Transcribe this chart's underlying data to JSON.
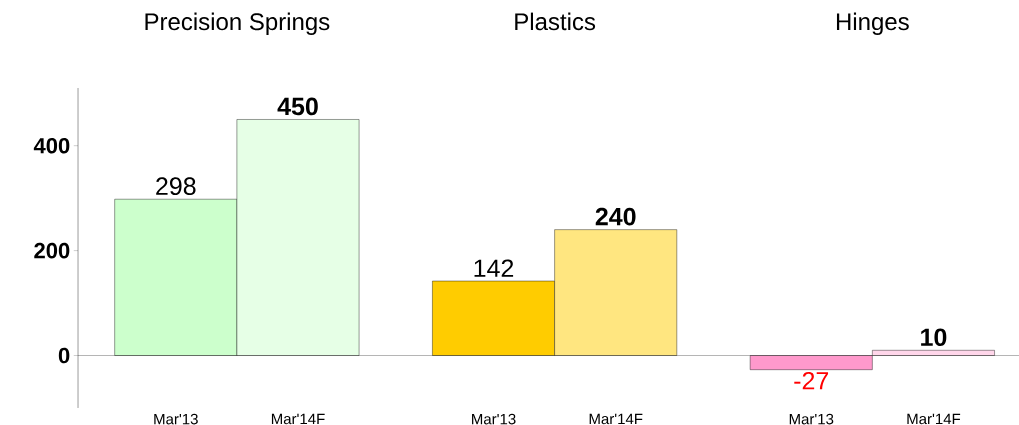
{
  "chart_data": {
    "type": "bar",
    "categories": [
      "Mar'13",
      "Mar'14F",
      "Mar'13",
      "Mar'14F",
      "Mar'13",
      "Mar'14F"
    ],
    "values": [
      298,
      450,
      142,
      240,
      -27,
      10
    ],
    "colors": [
      "#ccffcc",
      "#e6ffe6",
      "#ffcc00",
      "#ffe680",
      "#ff99cc",
      "#ffd6ea"
    ],
    "value_labels": [
      "298",
      "**450**",
      "142",
      "**240**",
      "-27",
      "**10**"
    ],
    "annotations": [
      "Precision Springs",
      "Plastics",
      "Hinges"
    ],
    "ylim": [
      -100,
      510
    ],
    "yticks": [
      0,
      200,
      400
    ]
  }
}
